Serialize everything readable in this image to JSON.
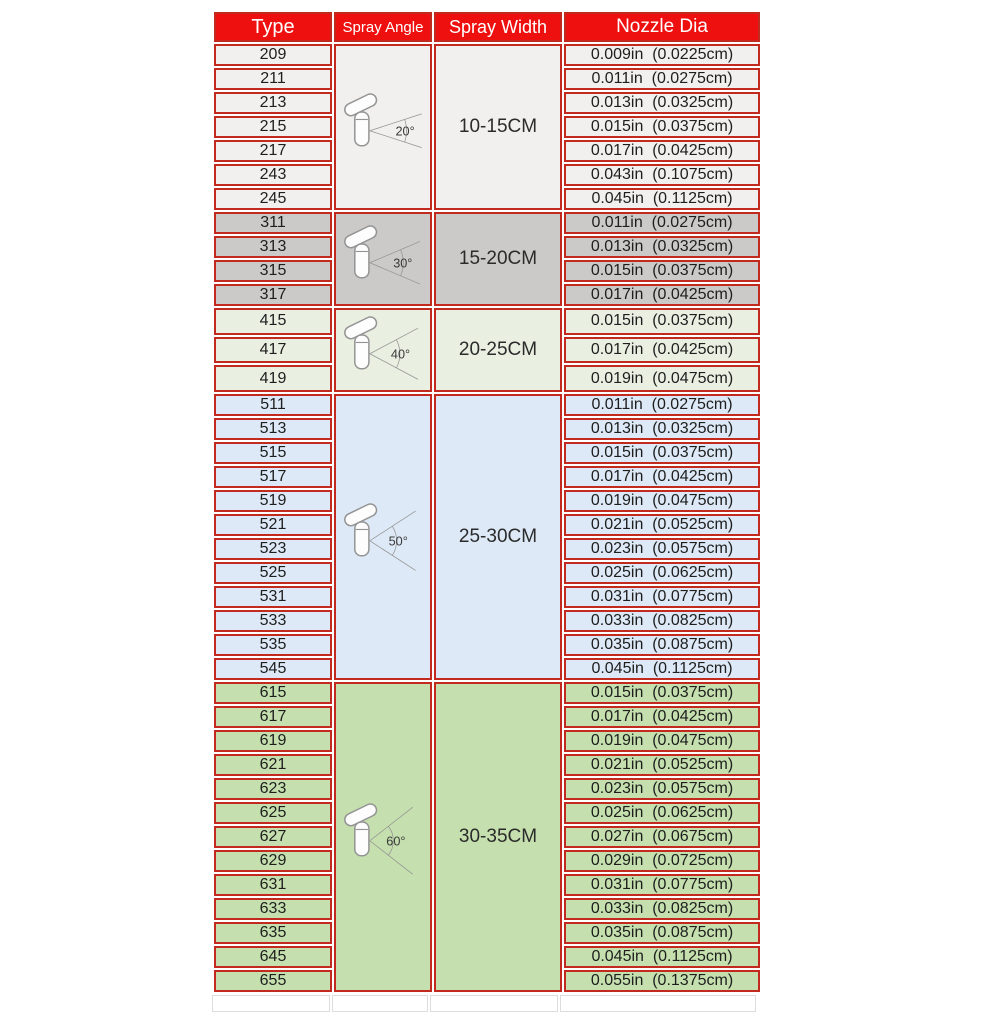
{
  "title": "Airless spray tip specification table",
  "colors": {
    "page_bg": "#ffffff",
    "header_bg": "#ee0f0f",
    "header_text": "#ffffff",
    "border": "#c22a20",
    "icon_stroke": "#949494",
    "angle_text": "#3a3a3a"
  },
  "chart_data": {
    "type": "table",
    "columns": [
      "Type",
      "Spray Angle",
      "Spray Width",
      "Nozzle Dia"
    ],
    "groups": [
      {
        "spray_angle_label": "20°",
        "spray_angle_deg": 20,
        "spray_width": "10-15CM",
        "bg": "#f1f0ee",
        "rows": [
          {
            "type": "209",
            "nozzle_dia": "0.009in  (0.0225cm)"
          },
          {
            "type": "211",
            "nozzle_dia": "0.011in  (0.0275cm)"
          },
          {
            "type": "213",
            "nozzle_dia": "0.013in  (0.0325cm)"
          },
          {
            "type": "215",
            "nozzle_dia": "0.015in  (0.0375cm)"
          },
          {
            "type": "217",
            "nozzle_dia": "0.017in  (0.0425cm)"
          },
          {
            "type": "243",
            "nozzle_dia": "0.043in  (0.1075cm)"
          },
          {
            "type": "245",
            "nozzle_dia": "0.045in  (0.1125cm)"
          }
        ]
      },
      {
        "spray_angle_label": "30°",
        "spray_angle_deg": 30,
        "spray_width": "15-20CM",
        "bg": "#cbcac8",
        "rows": [
          {
            "type": "311",
            "nozzle_dia": "0.011in  (0.0275cm)"
          },
          {
            "type": "313",
            "nozzle_dia": "0.013in  (0.0325cm)"
          },
          {
            "type": "315",
            "nozzle_dia": "0.015in  (0.0375cm)"
          },
          {
            "type": "317",
            "nozzle_dia": "0.017in  (0.0425cm)"
          }
        ]
      },
      {
        "spray_angle_label": "40°",
        "spray_angle_deg": 40,
        "spray_width": "20-25CM",
        "bg": "#e9f0e2",
        "rows": [
          {
            "type": "415",
            "nozzle_dia": "0.015in  (0.0375cm)"
          },
          {
            "type": "417",
            "nozzle_dia": "0.017in  (0.0425cm)"
          },
          {
            "type": "419",
            "nozzle_dia": "0.019in  (0.0475cm)"
          }
        ]
      },
      {
        "spray_angle_label": "50°",
        "spray_angle_deg": 50,
        "spray_width": "25-30CM",
        "bg": "#dde9f6",
        "rows": [
          {
            "type": "511",
            "nozzle_dia": "0.011in  (0.0275cm)"
          },
          {
            "type": "513",
            "nozzle_dia": "0.013in  (0.0325cm)"
          },
          {
            "type": "515",
            "nozzle_dia": "0.015in  (0.0375cm)"
          },
          {
            "type": "517",
            "nozzle_dia": "0.017in  (0.0425cm)"
          },
          {
            "type": "519",
            "nozzle_dia": "0.019in  (0.0475cm)"
          },
          {
            "type": "521",
            "nozzle_dia": "0.021in  (0.0525cm)"
          },
          {
            "type": "523",
            "nozzle_dia": "0.023in  (0.0575cm)"
          },
          {
            "type": "525",
            "nozzle_dia": "0.025in  (0.0625cm)"
          },
          {
            "type": "531",
            "nozzle_dia": "0.031in  (0.0775cm)"
          },
          {
            "type": "533",
            "nozzle_dia": "0.033in  (0.0825cm)"
          },
          {
            "type": "535",
            "nozzle_dia": "0.035in  (0.0875cm)"
          },
          {
            "type": "545",
            "nozzle_dia": "0.045in  (0.1125cm)"
          }
        ]
      },
      {
        "spray_angle_label": "60°",
        "spray_angle_deg": 60,
        "spray_width": "30-35CM",
        "bg": "#c5e0ae",
        "rows": [
          {
            "type": "615",
            "nozzle_dia": "0.015in  (0.0375cm)"
          },
          {
            "type": "617",
            "nozzle_dia": "0.017in  (0.0425cm)"
          },
          {
            "type": "619",
            "nozzle_dia": "0.019in  (0.0475cm)"
          },
          {
            "type": "621",
            "nozzle_dia": "0.021in  (0.0525cm)"
          },
          {
            "type": "623",
            "nozzle_dia": "0.023in  (0.0575cm)"
          },
          {
            "type": "625",
            "nozzle_dia": "0.025in  (0.0625cm)"
          },
          {
            "type": "627",
            "nozzle_dia": "0.027in  (0.0675cm)"
          },
          {
            "type": "629",
            "nozzle_dia": "0.029in  (0.0725cm)"
          },
          {
            "type": "631",
            "nozzle_dia": "0.031in  (0.0775cm)"
          },
          {
            "type": "633",
            "nozzle_dia": "0.033in  (0.0825cm)"
          },
          {
            "type": "635",
            "nozzle_dia": "0.035in  (0.0875cm)"
          },
          {
            "type": "645",
            "nozzle_dia": "0.045in  (0.1125cm)"
          },
          {
            "type": "655",
            "nozzle_dia": "0.055in  (0.1375cm)"
          }
        ]
      }
    ]
  }
}
